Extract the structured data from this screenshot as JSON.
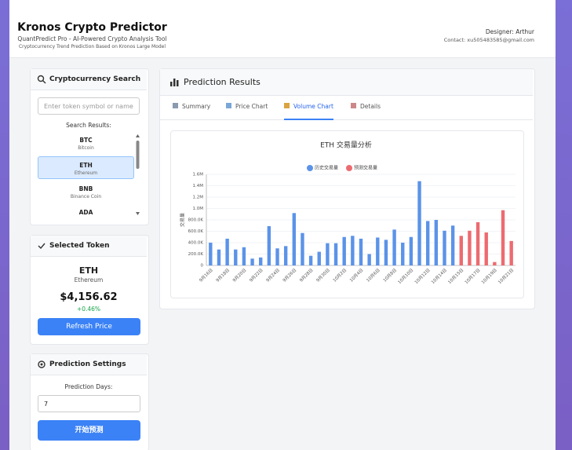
{
  "header": {
    "title": "Kronos Crypto Predictor",
    "subtitle": "QuantPredict Pro - AI-Powered Crypto Analysis Tool",
    "tagline": "Cryptocurrency Trend Prediction Based on Kronos Large Model",
    "designer": "Designer: Arthur",
    "contact": "Contact: xu505483585@gmail.com"
  },
  "search": {
    "title": "Cryptocurrency Search",
    "placeholder": "Enter token symbol or name",
    "results_label": "Search Results:",
    "results": [
      {
        "symbol": "BTC",
        "name": "Bitcoin"
      },
      {
        "symbol": "ETH",
        "name": "Ethereum"
      },
      {
        "symbol": "BNB",
        "name": "Binance Coin"
      },
      {
        "symbol": "ADA"
      }
    ]
  },
  "selected": {
    "title": "Selected Token",
    "symbol": "ETH",
    "name": "Ethereum",
    "price": "$4,156.62",
    "change": "+0.46%",
    "button": "Refresh Price"
  },
  "settings": {
    "title": "Prediction Settings",
    "days_label": "Prediction Days:",
    "days_value": "7",
    "button": "开始预测"
  },
  "results": {
    "title": "Prediction Results",
    "tabs": [
      "Summary",
      "Price Chart",
      "Volume Chart",
      "Details"
    ]
  },
  "chart_data": {
    "type": "bar",
    "title": "ETH 交易量分析",
    "y_label": "交易量",
    "categories": [
      "9月16日",
      null,
      "9月18日",
      null,
      "9月20日",
      null,
      "9月22日",
      null,
      "9月24日",
      null,
      "9月26日",
      null,
      "9月28日",
      null,
      "9月30日",
      null,
      "10月2日",
      null,
      "10月4日",
      null,
      "10月6日",
      null,
      "10月8日",
      null,
      "10月10日",
      null,
      "10月12日",
      null,
      "10月14日",
      null,
      "10月15日",
      null,
      "10月17日",
      null,
      "10月19日",
      null,
      "10月21日"
    ],
    "series": [
      {
        "name": "历史交易量",
        "color": "#5b93e8",
        "values": [
          400000,
          280000,
          470000,
          280000,
          320000,
          120000,
          140000,
          690000,
          300000,
          340000,
          920000,
          570000,
          170000,
          240000,
          390000,
          390000,
          500000,
          520000,
          470000,
          200000,
          490000,
          450000,
          630000,
          400000,
          500000,
          1480000,
          780000,
          800000,
          610000,
          700000,
          null,
          null,
          null,
          null,
          null,
          null,
          null
        ]
      },
      {
        "name": "预测交易量",
        "color": "#ec6b70",
        "values": [
          null,
          null,
          null,
          null,
          null,
          null,
          null,
          null,
          null,
          null,
          null,
          null,
          null,
          null,
          null,
          null,
          null,
          null,
          null,
          null,
          null,
          null,
          null,
          null,
          null,
          null,
          null,
          null,
          null,
          null,
          520000,
          610000,
          760000,
          580000,
          60000,
          970000,
          430000
        ]
      }
    ],
    "ylim": [
      0,
      1600000
    ],
    "yticks": [
      0,
      {
        "value": 200000,
        "label": "200.0K"
      },
      {
        "value": 400000,
        "label": "400.0K"
      },
      {
        "value": 600000,
        "label": "600.0K"
      },
      {
        "value": 800000,
        "label": "800.0K"
      },
      {
        "value": 1000000,
        "label": "1.0M"
      },
      {
        "value": 1200000,
        "label": "1.2M"
      },
      {
        "value": 1400000,
        "label": "1.4M"
      },
      {
        "value": 1600000,
        "label": "1.6M"
      }
    ],
    "grid": true
  }
}
